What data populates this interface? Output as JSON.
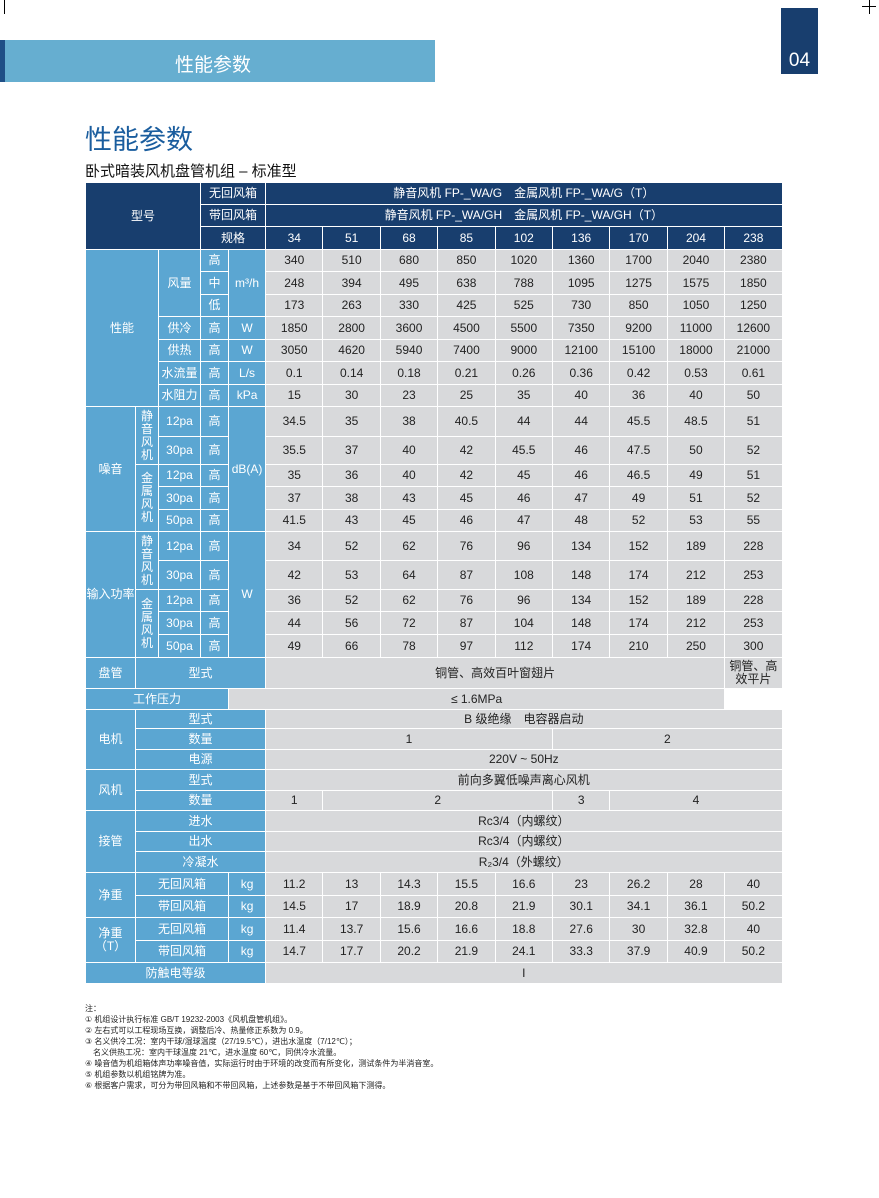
{
  "header": {
    "section": "性能参数",
    "page_number": "04"
  },
  "title": "性能参数",
  "subtitle": "卧式暗装风机盘管机组 – 标准型",
  "table": {
    "rows": [
      [
        "型号",
        "无回风箱",
        "静音风机 FP-_WA/G　金属风机 FP-_WA/G（T）"
      ],
      [
        "带回风箱",
        "静音风机 FP-_WA/GH　金属风机 FP-_WA/GH（T）"
      ],
      [
        "规格",
        34,
        51,
        68,
        85,
        102,
        136,
        170,
        204,
        238
      ],
      [
        "性能",
        "风量",
        "高",
        "m³/h",
        340,
        510,
        680,
        850,
        1020,
        1360,
        1700,
        2040,
        2380
      ],
      [
        "中",
        248,
        394,
        495,
        638,
        788,
        1095,
        1275,
        1575,
        1850
      ],
      [
        "低",
        173,
        263,
        330,
        425,
        525,
        730,
        850,
        1050,
        1250
      ],
      [
        "供冷",
        "高",
        "W",
        1850,
        2800,
        3600,
        4500,
        5500,
        7350,
        9200,
        11000,
        12600
      ],
      [
        "供热",
        "高",
        "W",
        3050,
        4620,
        5940,
        7400,
        9000,
        12100,
        15100,
        18000,
        21000
      ],
      [
        "水流量",
        "高",
        "L/s",
        0.1,
        0.14,
        0.18,
        0.21,
        0.26,
        0.36,
        0.42,
        0.53,
        0.61
      ],
      [
        "水阻力",
        "高",
        "kPa",
        15,
        30,
        23,
        25,
        35,
        40,
        36,
        40,
        50
      ],
      [
        "噪音",
        "静音风机",
        "12pa",
        "高",
        "dB(A)",
        34.5,
        35,
        38,
        40.5,
        44,
        44,
        45.5,
        48.5,
        51
      ],
      [
        "30pa",
        "高",
        35.5,
        37,
        40,
        42,
        45.5,
        46,
        47.5,
        50,
        52
      ],
      [
        "金属风机",
        "12pa",
        "高",
        35,
        36,
        40,
        42,
        45,
        46,
        46.5,
        49,
        51
      ],
      [
        "30pa",
        "高",
        37,
        38,
        43,
        45,
        46,
        47,
        49,
        51,
        52
      ],
      [
        "50pa",
        "高",
        41.5,
        43,
        45,
        46,
        47,
        48,
        52,
        53,
        55
      ],
      [
        "输入功率",
        "静音风机",
        "12pa",
        "高",
        "W",
        34,
        52,
        62,
        76,
        96,
        134,
        152,
        189,
        228
      ],
      [
        "30pa",
        "高",
        42,
        53,
        64,
        87,
        108,
        148,
        174,
        212,
        253
      ],
      [
        "金属风机",
        "12pa",
        "高",
        36,
        52,
        62,
        76,
        96,
        134,
        152,
        189,
        228
      ],
      [
        "30pa",
        "高",
        44,
        56,
        72,
        87,
        104,
        148,
        174,
        212,
        253
      ],
      [
        "50pa",
        "高",
        49,
        66,
        78,
        97,
        112,
        174,
        210,
        250,
        300
      ],
      [
        "盘管",
        "型式",
        "铜管、高效百叶窗翅片",
        "铜管、高效平片"
      ],
      [
        "工作压力",
        "≤ 1.6MPa"
      ],
      [
        "电机",
        "型式",
        "B 级绝缘　电容器启动"
      ],
      [
        "数量",
        1,
        2
      ],
      [
        "电源",
        "220V ~ 50Hz"
      ],
      [
        "风机",
        "型式",
        "前向多翼低噪声离心风机"
      ],
      [
        "数量",
        1,
        2,
        3,
        4
      ],
      [
        "接管",
        "进水",
        "Rc3/4（内螺纹）"
      ],
      [
        "出水",
        "Rc3/4（内螺纹）"
      ],
      [
        "冷凝水",
        "R₂3/4（外螺纹）"
      ],
      [
        "净重",
        "无回风箱",
        "kg",
        11.2,
        13,
        14.3,
        15.5,
        16.6,
        23,
        26.2,
        28,
        40
      ],
      [
        "带回风箱",
        "kg",
        14.5,
        17,
        18.9,
        20.8,
        21.9,
        30.1,
        34.1,
        36.1,
        50.2
      ],
      [
        "净重（T）",
        "无回风箱",
        "kg",
        11.4,
        13.7,
        15.6,
        16.6,
        18.8,
        27.6,
        30,
        32.8,
        40
      ],
      [
        "带回风箱",
        "kg",
        14.7,
        17.7,
        20.2,
        21.9,
        24.1,
        33.3,
        37.9,
        40.9,
        50.2
      ],
      [
        "防触电等级",
        "I"
      ]
    ]
  },
  "notes": [
    "注：",
    "① 机组设计执行标准 GB/T 19232-2003《风机盘管机组》。",
    "② 左右式可以工程现场互换，调整后冷、热量修正系数为 0.9。",
    "③ 名义供冷工况：室内干球/湿球温度（27/19.5℃），进出水温度（7/12℃）；",
    "　名义供热工况：室内干球温度 21℃，进水温度 60℃，同供冷水流量。",
    "④ 噪音值为机组箱体声功率噪音值，实际运行时由于环境的改变而有所变化，测试条件为半消音室。",
    "⑤ 机组参数以机组铭牌为准。",
    "⑥ 根据客户需求，可分为带回风箱和不带回风箱，上述参数是基于不带回风箱下测得。"
  ]
}
